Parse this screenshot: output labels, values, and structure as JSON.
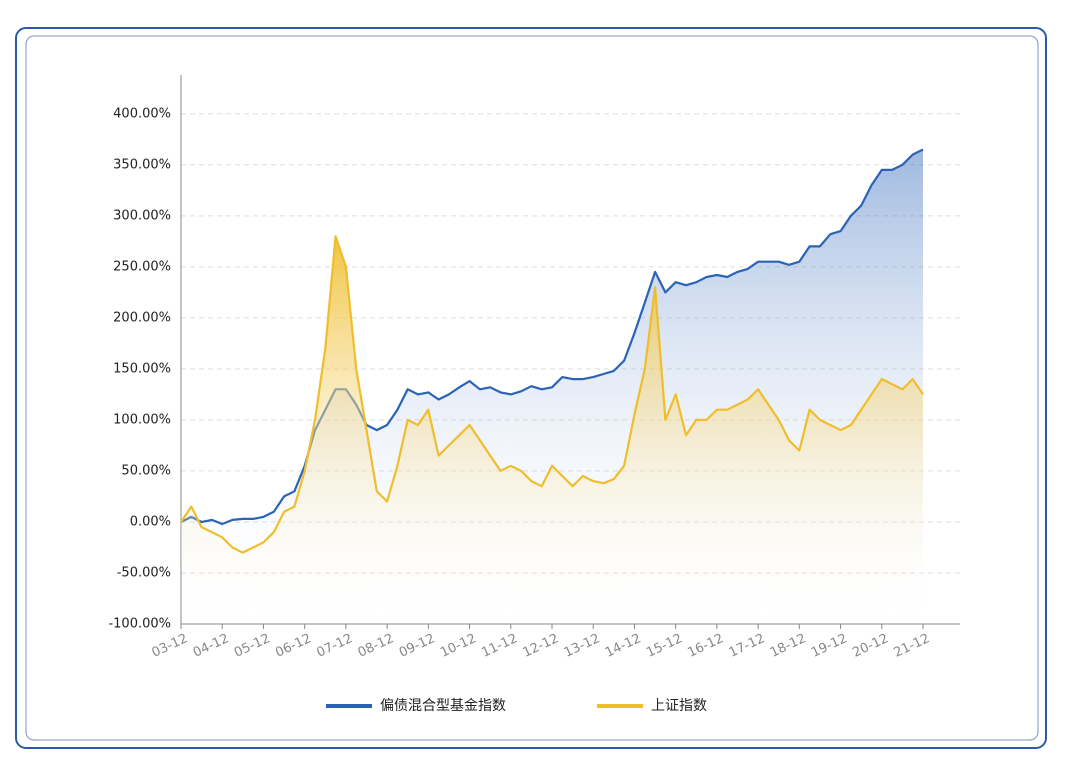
{
  "chart_data": {
    "type": "area",
    "x": [
      "03-12",
      "04-03",
      "04-06",
      "04-09",
      "04-12",
      "05-03",
      "05-06",
      "05-09",
      "05-12",
      "06-03",
      "06-06",
      "06-09",
      "06-12",
      "07-03",
      "07-06",
      "07-09",
      "07-12",
      "08-03",
      "08-06",
      "08-09",
      "08-12",
      "09-03",
      "09-06",
      "09-09",
      "09-12",
      "10-03",
      "10-06",
      "10-09",
      "10-12",
      "11-03",
      "11-06",
      "11-09",
      "11-12",
      "12-03",
      "12-06",
      "12-09",
      "12-12",
      "13-03",
      "13-06",
      "13-09",
      "13-12",
      "14-03",
      "14-06",
      "14-09",
      "14-12",
      "15-03",
      "15-06",
      "15-09",
      "15-12",
      "16-03",
      "16-06",
      "16-09",
      "16-12",
      "17-03",
      "17-06",
      "17-09",
      "17-12",
      "18-03",
      "18-06",
      "18-09",
      "18-12",
      "19-03",
      "19-06",
      "19-09",
      "19-12",
      "20-03",
      "20-06",
      "20-09",
      "20-12",
      "21-03",
      "21-06",
      "21-09",
      "21-12"
    ],
    "xticks": [
      "03-12",
      "04-12",
      "05-12",
      "06-12",
      "07-12",
      "08-12",
      "09-12",
      "10-12",
      "11-12",
      "12-12",
      "13-12",
      "14-12",
      "15-12",
      "16-12",
      "17-12",
      "18-12",
      "19-12",
      "20-12",
      "21-12"
    ],
    "series": [
      {
        "name": "偏债混合型基金指数",
        "color": "#2a63b8",
        "values": [
          0,
          5,
          0,
          2,
          -2,
          2,
          3,
          3,
          5,
          10,
          25,
          30,
          55,
          90,
          110,
          130,
          130,
          115,
          95,
          90,
          95,
          110,
          130,
          125,
          127,
          120,
          125,
          132,
          138,
          130,
          132,
          127,
          125,
          128,
          133,
          130,
          132,
          142,
          140,
          140,
          142,
          145,
          148,
          158,
          185,
          215,
          245,
          225,
          235,
          232,
          235,
          240,
          242,
          240,
          245,
          248,
          255,
          255,
          255,
          252,
          255,
          270,
          270,
          282,
          285,
          300,
          310,
          330,
          345,
          345,
          350,
          360,
          365
        ]
      },
      {
        "name": "上证指数",
        "color": "#f0bd2c",
        "values": [
          0,
          15,
          -5,
          -10,
          -15,
          -25,
          -30,
          -25,
          -20,
          -10,
          10,
          15,
          50,
          100,
          170,
          280,
          250,
          150,
          90,
          30,
          20,
          55,
          100,
          95,
          110,
          65,
          75,
          85,
          95,
          80,
          65,
          50,
          55,
          50,
          40,
          35,
          55,
          45,
          35,
          45,
          40,
          38,
          42,
          55,
          105,
          150,
          230,
          100,
          125,
          85,
          100,
          100,
          110,
          110,
          115,
          120,
          130,
          115,
          100,
          80,
          70,
          110,
          100,
          95,
          90,
          95,
          110,
          125,
          140,
          135,
          130,
          140,
          125
        ]
      }
    ],
    "ylim": [
      -100,
      438
    ],
    "yticks": [
      {
        "value": -100,
        "label": "-100.00%"
      },
      {
        "value": -50,
        "label": "-50.00%"
      },
      {
        "value": 0,
        "label": "0.00%"
      },
      {
        "value": 50,
        "label": "50.00%"
      },
      {
        "value": 100,
        "label": "100.00%"
      },
      {
        "value": 150,
        "label": "150.00%"
      },
      {
        "value": 200,
        "label": "200.00%"
      },
      {
        "value": 250,
        "label": "250.00%"
      },
      {
        "value": 300,
        "label": "300.00%"
      },
      {
        "value": 350,
        "label": "350.00%"
      },
      {
        "value": 400,
        "label": "400.00%"
      }
    ],
    "grid": true
  }
}
